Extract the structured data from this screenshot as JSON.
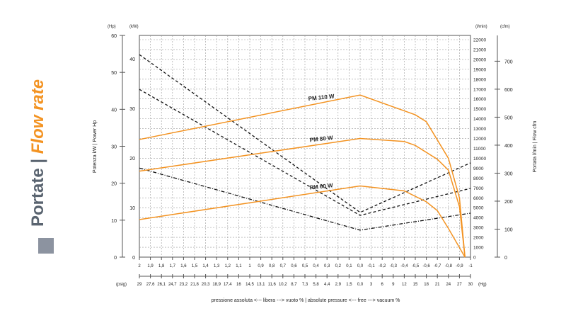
{
  "side_title": {
    "main": "Portate | ",
    "accent": "Flow rate"
  },
  "colors": {
    "curve": "#f39322",
    "power": "#111111",
    "grid": "#9a9a9a",
    "title_gray": "#5a6470",
    "square": "#8c93a0"
  },
  "chart_data": {
    "type": "line",
    "x_unit_top": "bar",
    "xlim": [
      2,
      -1
    ],
    "x_ticks_bar": [
      "2",
      "1,9",
      "1,8",
      "1,7",
      "1,6",
      "1,5",
      "1,4",
      "1,3",
      "1,2",
      "1,1",
      "1",
      "0,9",
      "0,8",
      "0,7",
      "0,6",
      "0,5",
      "0,4",
      "0,3",
      "0,2",
      "0,1",
      "0,0",
      "-0,1",
      "-0,2",
      "-0,3",
      "-0,4",
      "-0,5",
      "-0,6",
      "-0,7",
      "-0,8",
      "-0,9",
      "-1"
    ],
    "x_ticks_psig_label": "(psig)",
    "x_ticks_psig": [
      "29",
      "27,6",
      "26,1",
      "24,7",
      "23,2",
      "21,8",
      "20,3",
      "18,9",
      "17,4",
      "16",
      "14,5",
      "13,1",
      "11,6",
      "10,2",
      "8,7",
      "7,3",
      "5,8",
      "4,4",
      "2,9",
      "1,5",
      "0,0",
      "3",
      "6",
      "9",
      "12",
      "15",
      "18",
      "21",
      "24",
      "27",
      "30"
    ],
    "x_ticks_hg_label": "(Hg)",
    "xlabel": "pressione assoluta <--- libera --->  vuoto % | absolute pressure <--- free --->  vacuum %",
    "left_axis_hp": {
      "unit": "(Hp)",
      "ticks": [
        0,
        10,
        20,
        30,
        40,
        50,
        60
      ],
      "ylim": [
        0,
        60
      ]
    },
    "left_axis_kw": {
      "unit": "(kW)",
      "ticks": [
        0,
        10,
        20,
        30,
        40
      ]
    },
    "left_label": "Potenza kW | Power Hp",
    "right_axis_lmin": {
      "unit": "(l/min)",
      "ticks": [
        0,
        1000,
        2000,
        3000,
        4000,
        5000,
        6000,
        7000,
        8000,
        9000,
        10000,
        11000,
        12000,
        13000,
        14000,
        15000,
        16000,
        17000,
        18000,
        19000,
        20000,
        21000,
        22000
      ],
      "ylim": [
        0,
        22500
      ]
    },
    "right_axis_cfm": {
      "unit": "(cfm)",
      "ticks": [
        0,
        100,
        200,
        300,
        400,
        500,
        600,
        700
      ]
    },
    "right_label": "Portata l/min | Flow cfm",
    "flow_series_lmin": [
      {
        "name": "PM 110 W",
        "points": [
          [
            2,
            11900
          ],
          [
            0,
            16400
          ],
          [
            -0.5,
            14400
          ],
          [
            -0.6,
            13700
          ],
          [
            -0.8,
            10000
          ],
          [
            -0.9,
            6000
          ],
          [
            -0.95,
            0
          ]
        ]
      },
      {
        "name": "PM 80 W",
        "points": [
          [
            2,
            8700
          ],
          [
            0,
            12000
          ],
          [
            -0.4,
            11700
          ],
          [
            -0.5,
            11300
          ],
          [
            -0.7,
            9900
          ],
          [
            -0.8,
            8800
          ],
          [
            -0.9,
            5100
          ],
          [
            -0.95,
            0
          ]
        ]
      },
      {
        "name": "PM 60 W",
        "points": [
          [
            2,
            3800
          ],
          [
            0,
            7200
          ],
          [
            -0.4,
            6700
          ],
          [
            -0.6,
            5600
          ],
          [
            -0.7,
            4700
          ],
          [
            -0.8,
            2900
          ],
          [
            -0.95,
            0
          ]
        ]
      }
    ],
    "power_series_hp": [
      {
        "style": "dashed",
        "points": [
          [
            2,
            54.8
          ],
          [
            0,
            12.1
          ],
          [
            -1,
            25.5
          ]
        ]
      },
      {
        "style": "dashed",
        "points": [
          [
            2,
            45.4
          ],
          [
            0,
            11.3
          ],
          [
            -1,
            18.6
          ]
        ]
      },
      {
        "style": "dashdot",
        "points": [
          [
            2,
            24.1
          ],
          [
            0,
            7.3
          ],
          [
            -1,
            11.9
          ]
        ]
      }
    ],
    "grid": true
  }
}
